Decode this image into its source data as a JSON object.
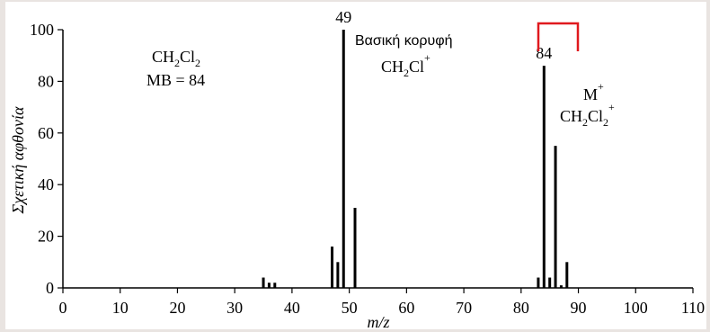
{
  "chart_data": {
    "type": "bar",
    "xlabel": "m/z",
    "ylabel": "Σχετική αφθονία",
    "xlim": [
      0,
      110
    ],
    "ylim": [
      0,
      100
    ],
    "x_ticks": [
      0,
      10,
      20,
      30,
      40,
      50,
      60,
      70,
      80,
      90,
      100,
      110
    ],
    "y_ticks": [
      0,
      20,
      40,
      60,
      80,
      100
    ],
    "x": [
      35,
      36,
      37,
      47,
      48,
      49,
      51,
      83,
      84,
      85,
      86,
      87,
      88
    ],
    "values": [
      4,
      2,
      2,
      16,
      10,
      100,
      31,
      4,
      86,
      4,
      55,
      1,
      10
    ],
    "peak_labels": [
      {
        "x": 49,
        "text": "49"
      },
      {
        "x": 84,
        "text": "84"
      }
    ],
    "compound": {
      "formula_main": "CH",
      "formula_sub1": "2",
      "formula_mid": "Cl",
      "formula_sub2": "2",
      "mw_text": "MB = 84"
    },
    "base_peak": {
      "label": "Βασική κορυφή",
      "ion_main": "CH",
      "ion_sub": "2",
      "ion_end": "Cl",
      "ion_charge": "+"
    },
    "molecular_ion": {
      "label": "M",
      "label_charge": "+",
      "ion_main": "CH",
      "ion_sub1": "2",
      "ion_mid": "Cl",
      "ion_sub2": "2",
      "ion_charge": "+"
    },
    "colors": {
      "bar": "#000000",
      "bracket": "#e0191e",
      "background": "#e9e4e1"
    }
  }
}
